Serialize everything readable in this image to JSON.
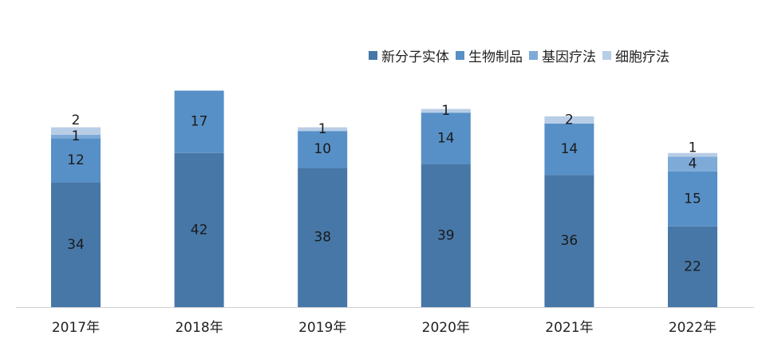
{
  "chart_data": {
    "type": "bar",
    "stacked": true,
    "categories": [
      "2017年",
      "2018年",
      "2019年",
      "2020年",
      "2021年",
      "2022年"
    ],
    "series": [
      {
        "name": "新分子实体",
        "color": "#4677a7",
        "values": [
          34,
          42,
          38,
          39,
          36,
          22
        ]
      },
      {
        "name": "生物制品",
        "color": "#5790c7",
        "values": [
          12,
          17,
          10,
          14,
          14,
          15
        ]
      },
      {
        "name": "基因疗法",
        "color": "#7eaad8",
        "values": [
          1,
          null,
          null,
          null,
          null,
          4
        ]
      },
      {
        "name": "细胞疗法",
        "color": "#b8cde6",
        "values": [
          2,
          null,
          1,
          1,
          2,
          1
        ]
      }
    ],
    "ylim": [
      0,
      60
    ],
    "grid": false,
    "legend_position": "top-right"
  }
}
